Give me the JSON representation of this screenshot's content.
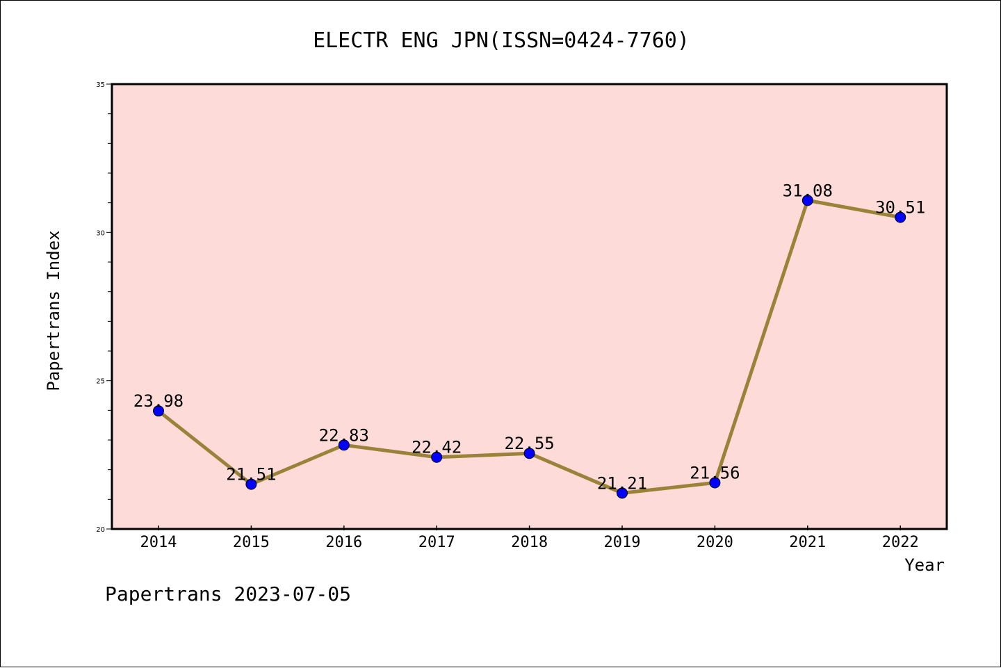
{
  "chart_data": {
    "type": "line",
    "title": "ELECTR ENG JPN(ISSN=0424-7760)",
    "xlabel": "Year",
    "ylabel": "Papertrans Index",
    "categories": [
      "2014",
      "2015",
      "2016",
      "2017",
      "2018",
      "2019",
      "2020",
      "2021",
      "2022"
    ],
    "values": [
      23.98,
      21.51,
      22.83,
      22.42,
      22.55,
      21.21,
      21.56,
      31.08,
      30.51
    ],
    "data_labels": [
      "23.98",
      "21.51",
      "22.83",
      "22.42",
      "22.55",
      "21.21",
      "21.56",
      "31.08",
      "30.51"
    ],
    "ylim": [
      20,
      35
    ],
    "yticks": [
      20,
      25,
      30,
      35
    ],
    "ytick_labels": [
      "20",
      "25",
      "30",
      "35"
    ],
    "grid": false,
    "legend": "none",
    "plot_background": "#fddbd8",
    "line_color": "#9a8338",
    "marker_color": "#0000ff"
  },
  "footer": "Papertrans 2023-07-05"
}
